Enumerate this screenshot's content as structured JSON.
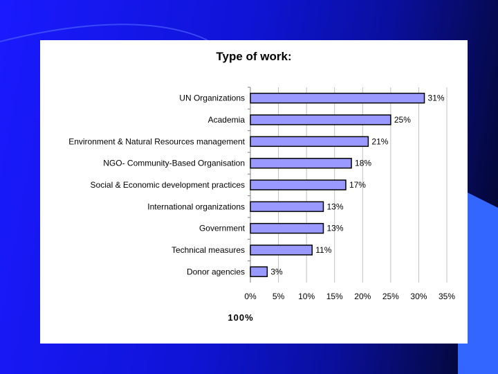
{
  "colors": {
    "bar_fill": "#9999ff",
    "bar_stroke": "#000000",
    "grid": "#c0c0c0",
    "panel": "#ffffff",
    "background_left": "#1a1aff",
    "background_right": "#02051f",
    "accent_shape": "#3366ff"
  },
  "chart_data": {
    "type": "bar",
    "orientation": "horizontal",
    "title": "Type of work:",
    "xlabel": "100%",
    "ylabel": "",
    "categories": [
      "UN Organizations",
      "Academia",
      "Environment & Natural Resources management",
      "NGO- Community-Based Organisation",
      "Social & Economic development practices",
      "International organizations",
      "Government",
      "Technical measures",
      "Donor agencies"
    ],
    "values": [
      31,
      25,
      21,
      18,
      17,
      13,
      13,
      11,
      3
    ],
    "value_labels": [
      "31%",
      "25%",
      "21%",
      "18%",
      "17%",
      "13%",
      "13%",
      "11%",
      "3%"
    ],
    "xlim": [
      0,
      35
    ],
    "xticks": [
      "0%",
      "5%",
      "10%",
      "15%",
      "20%",
      "25%",
      "30%",
      "35%"
    ],
    "grid": "vertical",
    "legend": "none"
  }
}
